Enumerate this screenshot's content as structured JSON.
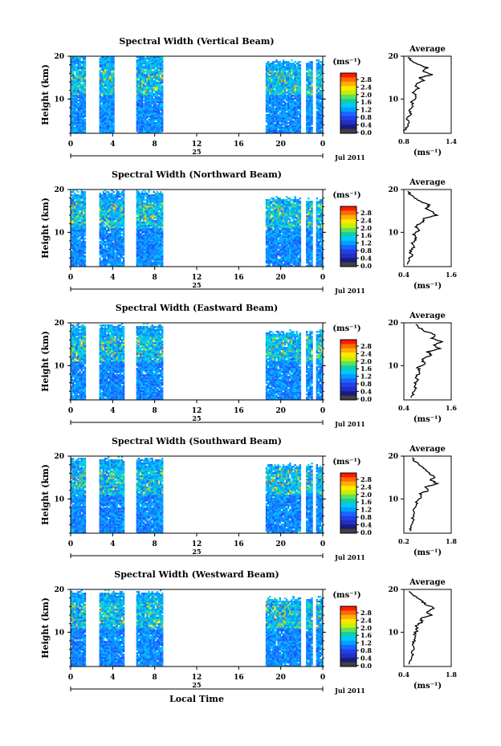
{
  "colorbar": {
    "unit_label": "(ms⁻¹)",
    "ticks": [
      "2.8",
      "2.4",
      "2.0",
      "1.6",
      "1.2",
      "0.8",
      "0.4",
      "0.0"
    ],
    "colors": [
      "#ff1a00",
      "#ff6a00",
      "#ffb000",
      "#ffe800",
      "#c8f000",
      "#60e060",
      "#10d0a0",
      "#00c8ff",
      "#00a0ff",
      "#1a66ff",
      "#2040e8",
      "#2030c0",
      "#1a1a80",
      "#404040"
    ]
  },
  "common": {
    "time_ticks": [
      "0",
      "4",
      "8",
      "12",
      "16",
      "20",
      "0"
    ],
    "date_day": "25",
    "date_label": "Jul 2011",
    "ylabel": "Height (km)",
    "y_ticks": [
      "20",
      "10"
    ],
    "avg_title": "Average",
    "avg_unit": "(ms⁻¹)",
    "xlabel_bottom": "Local Time"
  },
  "chart_data": [
    {
      "type": "heatmap",
      "title": "Spectral Width (Vertical Beam)",
      "xlim": [
        0,
        24
      ],
      "ylim": [
        2,
        20
      ],
      "data_segments_hours": [
        [
          0,
          1.5
        ],
        [
          2.7,
          4.2
        ],
        [
          6.2,
          8.8
        ],
        [
          18.6,
          21.9
        ],
        [
          22.4,
          23.0
        ],
        [
          23.3,
          24
        ]
      ],
      "profile": {
        "xlim": [
          0.8,
          1.4
        ],
        "xticks": [
          "0.8",
          "1.4"
        ],
        "points": [
          [
            0.8,
            2.5
          ],
          [
            0.84,
            3.5
          ],
          [
            0.88,
            4.5
          ],
          [
            0.84,
            5.5
          ],
          [
            0.9,
            6.5
          ],
          [
            0.86,
            7.5
          ],
          [
            0.92,
            8.5
          ],
          [
            0.9,
            9.5
          ],
          [
            0.96,
            10.5
          ],
          [
            0.92,
            11.5
          ],
          [
            0.98,
            12.5
          ],
          [
            0.94,
            13.5
          ],
          [
            1.06,
            14.3
          ],
          [
            1.0,
            15.0
          ],
          [
            1.16,
            15.7
          ],
          [
            1.04,
            16.5
          ],
          [
            1.1,
            17.3
          ],
          [
            0.96,
            18.2
          ],
          [
            0.9,
            19.0
          ],
          [
            0.86,
            19.8
          ]
        ]
      }
    },
    {
      "type": "heatmap",
      "title": "Spectral Width (Northward Beam)",
      "xlim": [
        0,
        24
      ],
      "ylim": [
        2,
        20
      ],
      "data_segments_hours": [
        [
          0,
          1.5
        ],
        [
          2.7,
          5.2
        ],
        [
          6.2,
          8.8
        ],
        [
          18.6,
          21.9
        ],
        [
          22.4,
          23.0
        ],
        [
          23.3,
          24
        ]
      ],
      "profile": {
        "xlim": [
          0.4,
          1.6
        ],
        "xticks": [
          "0.4",
          "1.6"
        ],
        "points": [
          [
            0.46,
            2.5
          ],
          [
            0.52,
            3.5
          ],
          [
            0.6,
            4.5
          ],
          [
            0.56,
            5.5
          ],
          [
            0.64,
            6.5
          ],
          [
            0.62,
            7.5
          ],
          [
            0.7,
            8.5
          ],
          [
            0.66,
            9.5
          ],
          [
            0.78,
            10.5
          ],
          [
            0.7,
            11.5
          ],
          [
            0.92,
            12.5
          ],
          [
            0.86,
            13.2
          ],
          [
            1.22,
            14.0
          ],
          [
            1.1,
            14.8
          ],
          [
            0.98,
            15.6
          ],
          [
            1.04,
            16.4
          ],
          [
            0.84,
            17.2
          ],
          [
            0.7,
            18.0
          ],
          [
            0.56,
            18.8
          ],
          [
            0.5,
            19.6
          ]
        ]
      }
    },
    {
      "type": "heatmap",
      "title": "Spectral Width (Eastward Beam)",
      "xlim": [
        0,
        24
      ],
      "ylim": [
        2,
        20
      ],
      "data_segments_hours": [
        [
          0,
          1.5
        ],
        [
          2.7,
          5.2
        ],
        [
          6.2,
          8.8
        ],
        [
          18.6,
          21.9
        ],
        [
          22.4,
          23.0
        ],
        [
          23.3,
          24
        ]
      ],
      "profile": {
        "xlim": [
          0.4,
          1.6
        ],
        "xticks": [
          "0.4",
          "1.6"
        ],
        "points": [
          [
            0.58,
            2.5
          ],
          [
            0.64,
            3.5
          ],
          [
            0.7,
            4.5
          ],
          [
            0.66,
            5.5
          ],
          [
            0.74,
            6.5
          ],
          [
            0.72,
            7.5
          ],
          [
            0.8,
            8.5
          ],
          [
            0.76,
            9.5
          ],
          [
            0.92,
            10.5
          ],
          [
            0.84,
            11.5
          ],
          [
            1.1,
            12.5
          ],
          [
            1.0,
            13.2
          ],
          [
            1.3,
            14.0
          ],
          [
            1.18,
            14.8
          ],
          [
            1.36,
            15.6
          ],
          [
            1.1,
            16.4
          ],
          [
            1.2,
            17.2
          ],
          [
            0.94,
            18.0
          ],
          [
            0.8,
            18.8
          ],
          [
            0.7,
            19.6
          ]
        ]
      }
    },
    {
      "type": "heatmap",
      "title": "Spectral Width (Southward Beam)",
      "xlim": [
        0,
        24
      ],
      "ylim": [
        2,
        20
      ],
      "data_segments_hours": [
        [
          0,
          1.5
        ],
        [
          2.7,
          5.2
        ],
        [
          6.2,
          8.8
        ],
        [
          18.6,
          21.9
        ],
        [
          22.4,
          23.0
        ],
        [
          23.3,
          24
        ]
      ],
      "profile": {
        "xlim": [
          0.2,
          1.8
        ],
        "xticks": [
          "0.2",
          "1.8"
        ],
        "points": [
          [
            0.4,
            2.5
          ],
          [
            0.46,
            3.5
          ],
          [
            0.52,
            4.5
          ],
          [
            0.5,
            5.5
          ],
          [
            0.56,
            6.5
          ],
          [
            0.56,
            7.5
          ],
          [
            0.62,
            8.5
          ],
          [
            0.64,
            9.5
          ],
          [
            0.78,
            10.5
          ],
          [
            0.74,
            11.2
          ],
          [
            1.05,
            12.0
          ],
          [
            0.94,
            12.8
          ],
          [
            1.3,
            13.6
          ],
          [
            1.12,
            14.4
          ],
          [
            1.24,
            15.2
          ],
          [
            1.04,
            16.0
          ],
          [
            0.92,
            16.8
          ],
          [
            0.78,
            17.6
          ],
          [
            0.6,
            18.6
          ],
          [
            0.48,
            19.6
          ]
        ]
      }
    },
    {
      "type": "heatmap",
      "title": "Spectral Width (Westward Beam)",
      "xlim": [
        0,
        24
      ],
      "ylim": [
        2,
        20
      ],
      "data_segments_hours": [
        [
          0,
          1.5
        ],
        [
          2.7,
          5.2
        ],
        [
          6.2,
          8.8
        ],
        [
          18.6,
          21.9
        ],
        [
          22.4,
          23.0
        ],
        [
          23.3,
          24
        ]
      ],
      "profile": {
        "xlim": [
          0.4,
          1.8
        ],
        "xticks": [
          "0.4",
          "1.8"
        ],
        "points": [
          [
            0.54,
            2.5
          ],
          [
            0.6,
            3.5
          ],
          [
            0.66,
            4.5
          ],
          [
            0.62,
            5.5
          ],
          [
            0.7,
            6.5
          ],
          [
            0.66,
            7.5
          ],
          [
            0.74,
            8.5
          ],
          [
            0.7,
            9.5
          ],
          [
            0.8,
            10.5
          ],
          [
            0.76,
            11.5
          ],
          [
            0.96,
            12.5
          ],
          [
            0.88,
            13.2
          ],
          [
            1.2,
            14.0
          ],
          [
            1.06,
            14.8
          ],
          [
            1.32,
            15.6
          ],
          [
            1.08,
            16.4
          ],
          [
            0.94,
            17.2
          ],
          [
            0.78,
            18.0
          ],
          [
            0.64,
            18.8
          ],
          [
            0.56,
            19.6
          ]
        ]
      }
    }
  ]
}
